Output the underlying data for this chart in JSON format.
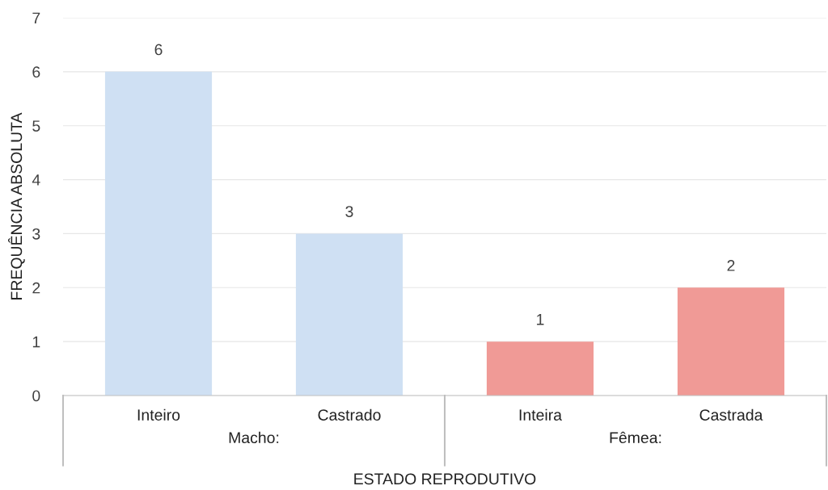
{
  "chart_data": {
    "type": "bar",
    "xlabel": "ESTADO REPRODUTIVO",
    "ylabel": "FREQUÊNCIA ABSOLUTA",
    "categories": [
      "Inteiro",
      "Castrado",
      "Inteira",
      "Castrada"
    ],
    "values": [
      6,
      3,
      1,
      2
    ],
    "colors": [
      "#cfe0f3",
      "#cfe0f3",
      "#f09a96",
      "#f09a96"
    ],
    "annotations": [
      "Macho:",
      "Fêmea:"
    ],
    "ylim": [
      0,
      7
    ],
    "yticks": [
      0,
      1,
      2,
      3,
      4,
      5,
      6,
      7
    ],
    "grid": "y",
    "data_labels": true
  }
}
